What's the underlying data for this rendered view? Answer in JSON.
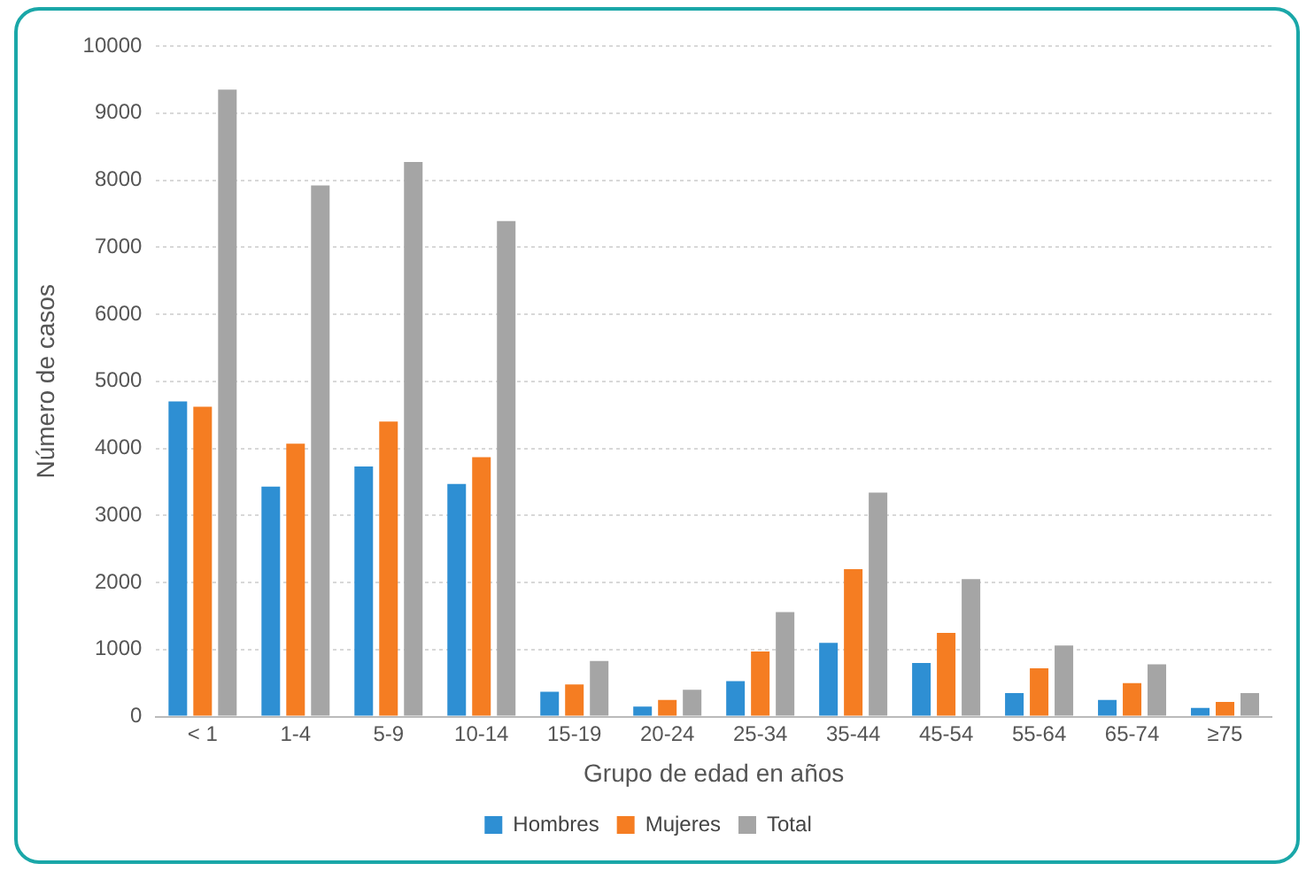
{
  "chart_data": {
    "type": "bar",
    "xlabel": "Grupo de edad en años",
    "ylabel": "Número de casos",
    "categories": [
      "< 1",
      "1-4",
      "5-9",
      "10-14",
      "15-19",
      "20-24",
      "25-34",
      "35-44",
      "45-54",
      "55-64",
      "65-74",
      "≥75"
    ],
    "series": [
      {
        "name": "Hombres",
        "color": "#2e8fd3",
        "values": [
          4700,
          3430,
          3730,
          3470,
          370,
          150,
          530,
          1100,
          800,
          350,
          250,
          130
        ]
      },
      {
        "name": "Mujeres",
        "color": "#f57d22",
        "values": [
          4620,
          4070,
          4400,
          3870,
          480,
          250,
          970,
          2200,
          1250,
          720,
          500,
          220
        ]
      },
      {
        "name": "Total",
        "color": "#a5a5a5",
        "values": [
          9350,
          7920,
          8270,
          7390,
          830,
          400,
          1560,
          3340,
          2050,
          1060,
          780,
          350
        ]
      }
    ],
    "ylim": [
      0,
      10000
    ],
    "yticks": [
      0,
      1000,
      2000,
      3000,
      4000,
      5000,
      6000,
      7000,
      8000,
      9000,
      10000
    ],
    "grid": "y",
    "legend": "bottom"
  }
}
